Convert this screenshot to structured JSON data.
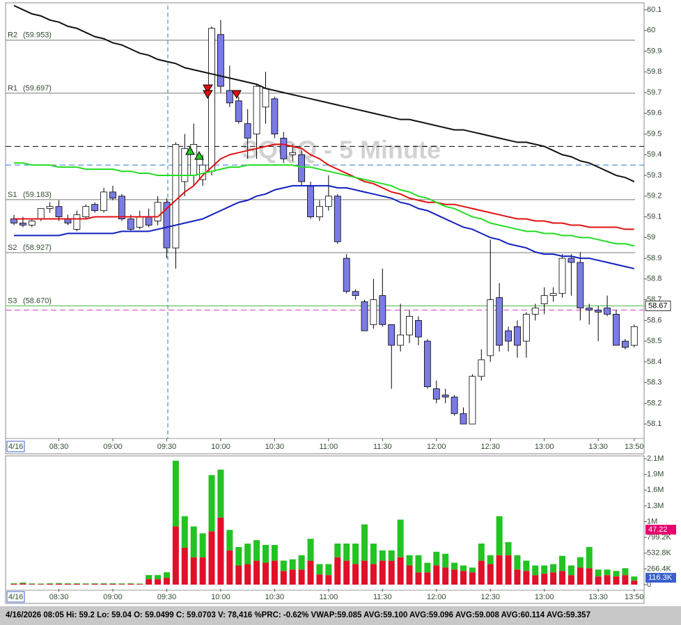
{
  "chart_data": [
    {
      "type": "candlestick",
      "title": "SQQQ - 5 Minute",
      "date_label": "4/16",
      "categories": [
        null,
        null,
        null,
        null,
        null,
        "08:30",
        null,
        null,
        null,
        null,
        null,
        "09:00",
        null,
        null,
        null,
        null,
        null,
        "09:30",
        null,
        null,
        null,
        null,
        null,
        "10:00",
        null,
        null,
        null,
        null,
        null,
        "10:30",
        null,
        null,
        null,
        null,
        null,
        "11:00",
        null,
        null,
        null,
        null,
        null,
        "11:30",
        null,
        null,
        null,
        null,
        null,
        "12:00",
        null,
        null,
        null,
        null,
        null,
        "12:30",
        null,
        null,
        null,
        null,
        null,
        "13:00",
        null,
        null,
        null,
        null,
        null,
        "13:30",
        null,
        null,
        null,
        "13:50"
      ],
      "open": [
        59.09,
        59.07,
        59.06,
        59.09,
        59.14,
        59.15,
        59.09,
        59.04,
        59.1,
        59.16,
        59.13,
        59.22,
        59.2,
        59.09,
        59.05,
        59.1,
        59.08,
        59.17,
        58.95,
        59.27,
        59.3,
        59.28,
        59.32,
        59.98,
        59.71,
        59.66,
        59.55,
        59.5,
        59.63,
        59.67,
        59.48,
        59.4,
        59.4,
        59.25,
        59.1,
        59.15,
        59.2,
        58.9,
        58.74,
        58.69,
        58.58,
        58.72,
        58.58,
        58.48,
        58.53,
        58.6,
        58.5,
        58.27,
        58.24,
        58.23,
        58.15,
        58.1,
        58.33,
        58.43,
        58.71,
        58.55,
        58.57,
        58.5,
        58.63,
        58.68,
        58.72,
        58.73,
        58.9,
        58.88,
        58.66,
        58.65,
        58.66,
        58.63,
        58.5,
        58.48
      ],
      "high": [
        59.11,
        59.1,
        59.09,
        59.14,
        59.17,
        59.18,
        59.11,
        59.13,
        59.16,
        59.17,
        59.24,
        59.25,
        59.21,
        59.11,
        59.13,
        59.14,
        59.2,
        59.19,
        59.46,
        59.5,
        59.55,
        59.4,
        60.02,
        60.05,
        59.83,
        59.68,
        59.62,
        59.74,
        59.8,
        59.68,
        59.51,
        59.45,
        59.42,
        59.27,
        59.18,
        59.3,
        59.21,
        58.92,
        58.75,
        58.7,
        58.8,
        58.85,
        58.58,
        58.68,
        58.65,
        58.62,
        58.51,
        58.31,
        58.27,
        58.24,
        58.18,
        58.34,
        58.46,
        58.99,
        58.78,
        58.57,
        58.6,
        58.64,
        58.68,
        58.76,
        58.76,
        58.92,
        58.92,
        58.93,
        58.68,
        58.67,
        58.72,
        58.65,
        58.51,
        58.58
      ],
      "low": [
        59.06,
        59.05,
        59.05,
        59.08,
        59.12,
        59.08,
        59.06,
        59.03,
        59.09,
        59.12,
        59.12,
        59.18,
        59.08,
        59.03,
        59.04,
        59.05,
        59.06,
        58.9,
        58.85,
        59.2,
        59.25,
        59.25,
        59.3,
        59.7,
        59.63,
        59.55,
        59.38,
        59.38,
        59.55,
        59.48,
        59.36,
        59.37,
        59.25,
        59.09,
        59.08,
        59.13,
        58.97,
        58.73,
        58.7,
        58.55,
        58.56,
        58.57,
        58.27,
        58.45,
        58.49,
        58.48,
        58.27,
        58.2,
        58.2,
        58.14,
        58.1,
        58.1,
        58.31,
        58.4,
        58.45,
        58.45,
        58.42,
        58.42,
        58.6,
        58.63,
        58.69,
        58.71,
        58.72,
        58.6,
        58.58,
        58.5,
        58.62,
        58.48,
        58.46,
        58.47
      ],
      "close": [
        59.07,
        59.06,
        59.08,
        59.14,
        59.15,
        59.1,
        59.07,
        59.11,
        59.15,
        59.13,
        59.22,
        59.19,
        59.09,
        59.04,
        59.1,
        59.06,
        59.17,
        58.95,
        59.45,
        59.43,
        59.45,
        59.35,
        60.01,
        59.73,
        59.65,
        59.56,
        59.48,
        59.73,
        59.72,
        59.5,
        59.38,
        59.41,
        59.27,
        59.1,
        59.15,
        59.2,
        58.98,
        58.74,
        58.72,
        58.55,
        58.7,
        58.58,
        58.48,
        58.53,
        58.62,
        58.52,
        58.28,
        58.22,
        58.23,
        58.15,
        58.1,
        58.33,
        58.41,
        58.7,
        58.48,
        58.5,
        58.48,
        58.63,
        58.66,
        58.72,
        58.73,
        58.9,
        58.88,
        58.66,
        58.65,
        58.64,
        58.63,
        58.48,
        58.47,
        58.57
      ],
      "up_color": "#ffffff",
      "down_color": "#7b7be6",
      "lines": [
        {
          "color": "#111111",
          "values": [
            60.12,
            60.1,
            60.08,
            60.07,
            60.05,
            60.04,
            60.02,
            60.01,
            59.99,
            59.97,
            59.96,
            59.94,
            59.93,
            59.91,
            59.89,
            59.88,
            59.86,
            59.85,
            59.84,
            59.82,
            59.81,
            59.8,
            59.79,
            59.78,
            59.77,
            59.76,
            59.75,
            59.74,
            59.72,
            59.71,
            59.7,
            59.69,
            59.68,
            59.67,
            59.66,
            59.65,
            59.64,
            59.63,
            59.62,
            59.61,
            59.6,
            59.59,
            59.58,
            59.57,
            59.57,
            59.56,
            59.55,
            59.54,
            59.53,
            59.52,
            59.52,
            59.51,
            59.5,
            59.49,
            59.48,
            59.47,
            59.46,
            59.46,
            59.45,
            59.44,
            59.42,
            59.4,
            59.39,
            59.37,
            59.36,
            59.34,
            59.32,
            59.3,
            59.29,
            59.27
          ]
        },
        {
          "color": "#e01010",
          "values": [
            59.09,
            59.09,
            59.09,
            59.09,
            59.09,
            59.09,
            59.09,
            59.09,
            59.09,
            59.1,
            59.1,
            59.1,
            59.1,
            59.1,
            59.1,
            59.1,
            59.1,
            59.14,
            59.18,
            59.22,
            59.25,
            59.3,
            59.34,
            59.38,
            59.4,
            59.41,
            59.42,
            59.43,
            59.44,
            59.45,
            59.45,
            59.44,
            59.43,
            59.4,
            59.38,
            59.35,
            59.33,
            59.31,
            59.29,
            59.27,
            59.26,
            59.24,
            59.22,
            59.21,
            59.19,
            59.18,
            59.17,
            59.17,
            59.16,
            59.16,
            59.15,
            59.14,
            59.13,
            59.12,
            59.11,
            59.1,
            59.09,
            59.09,
            59.08,
            59.08,
            59.07,
            59.07,
            59.06,
            59.06,
            59.05,
            59.05,
            59.05,
            59.05,
            59.04,
            59.04
          ]
        },
        {
          "color": "#22dd22",
          "values": [
            59.36,
            59.36,
            59.35,
            59.35,
            59.35,
            59.34,
            59.34,
            59.34,
            59.33,
            59.33,
            59.33,
            59.33,
            59.32,
            59.32,
            59.31,
            59.31,
            59.3,
            59.3,
            59.3,
            59.3,
            59.3,
            59.31,
            59.32,
            59.33,
            59.34,
            59.34,
            59.35,
            59.35,
            59.35,
            59.35,
            59.35,
            59.35,
            59.34,
            59.34,
            59.33,
            59.32,
            59.31,
            59.3,
            59.29,
            59.28,
            59.27,
            59.26,
            59.25,
            59.23,
            59.22,
            59.2,
            59.19,
            59.17,
            59.15,
            59.14,
            59.12,
            59.1,
            59.09,
            59.07,
            59.06,
            59.05,
            59.04,
            59.03,
            59.03,
            59.02,
            59.02,
            59.01,
            59.01,
            59.0,
            59.0,
            58.99,
            58.98,
            58.97,
            58.97,
            58.96
          ]
        },
        {
          "color": "#1020c0",
          "values": [
            59.01,
            59.01,
            59.01,
            59.01,
            59.01,
            59.01,
            59.02,
            59.02,
            59.02,
            59.02,
            59.02,
            59.02,
            59.03,
            59.03,
            59.03,
            59.03,
            59.04,
            59.05,
            59.06,
            59.07,
            59.08,
            59.09,
            59.11,
            59.13,
            59.15,
            59.17,
            59.18,
            59.2,
            59.21,
            59.23,
            59.24,
            59.25,
            59.25,
            59.25,
            59.25,
            59.25,
            59.24,
            59.24,
            59.23,
            59.22,
            59.21,
            59.2,
            59.19,
            59.17,
            59.16,
            59.14,
            59.13,
            59.11,
            59.09,
            59.07,
            59.05,
            59.04,
            59.02,
            59.0,
            58.99,
            58.97,
            58.96,
            58.95,
            58.93,
            58.92,
            58.92,
            58.91,
            58.91,
            58.9,
            58.9,
            58.89,
            58.88,
            58.87,
            58.86,
            58.85
          ]
        }
      ],
      "pivots": {
        "names": [
          "R2",
          "R1",
          "S1",
          "S2",
          "S3"
        ],
        "values": [
          59.953,
          59.697,
          59.183,
          58.927,
          58.67
        ],
        "value_labels": [
          "(59.953)",
          "(59.697)",
          "(59.183)",
          "(58.927)",
          "(58.670)"
        ]
      },
      "ref_lines": [
        {
          "value": 59.44,
          "color": "#000000"
        },
        {
          "value": 59.35,
          "color": "#2a7ad0"
        },
        {
          "value": 58.65,
          "color": "#d040c0"
        }
      ],
      "last_price": 58.67,
      "ylim": [
        58.03,
        60.12
      ],
      "yticks": [
        60.1,
        60,
        59.9,
        59.8,
        59.7,
        59.6,
        59.5,
        59.4,
        59.3,
        59.2,
        59.1,
        59,
        58.9,
        58.8,
        58.7,
        58.6,
        58.5,
        58.4,
        58.3,
        58.2,
        58.1
      ]
    },
    {
      "type": "bar",
      "date_label": "4/16",
      "categories": [
        null,
        null,
        null,
        null,
        null,
        "08:30",
        null,
        null,
        null,
        null,
        null,
        "09:00",
        null,
        null,
        null,
        null,
        null,
        "09:30",
        null,
        null,
        null,
        null,
        null,
        "10:00",
        null,
        null,
        null,
        null,
        null,
        "10:30",
        null,
        null,
        null,
        null,
        null,
        "11:00",
        null,
        null,
        null,
        null,
        null,
        "11:30",
        null,
        null,
        null,
        null,
        null,
        "12:00",
        null,
        null,
        null,
        null,
        null,
        "12:30",
        null,
        null,
        null,
        null,
        null,
        "13:00",
        null,
        null,
        null,
        null,
        null,
        "13:30",
        null,
        null,
        null,
        "13:50"
      ],
      "series": [
        {
          "color": "#e0102a",
          "values": [
            12000,
            20000,
            10000,
            10000,
            12000,
            15000,
            12000,
            12000,
            10000,
            12000,
            12000,
            12000,
            10000,
            12000,
            10000,
            93000,
            93000,
            116000,
            985000,
            625000,
            463000,
            463000,
            903000,
            1135000,
            579000,
            324000,
            347000,
            405000,
            371000,
            405000,
            232000,
            255000,
            255000,
            405000,
            174000,
            162000,
            463000,
            405000,
            347000,
            405000,
            347000,
            405000,
            405000,
            463000,
            324000,
            208000,
            208000,
            324000,
            290000,
            255000,
            232000,
            208000,
            405000,
            347000,
            498000,
            498000,
            255000,
            232000,
            162000,
            185000,
            208000,
            232000,
            162000,
            290000,
            278000,
            139000,
            162000,
            139000,
            162000,
            69000
          ]
        },
        {
          "color": "#22c322",
          "values": [
            10000,
            15000,
            10000,
            8000,
            10000,
            12000,
            10000,
            10000,
            10000,
            10000,
            10000,
            10000,
            10000,
            10000,
            8000,
            69000,
            69000,
            93000,
            1112000,
            533000,
            521000,
            405000,
            950000,
            811000,
            347000,
            313000,
            347000,
            347000,
            301000,
            266000,
            174000,
            174000,
            243000,
            371000,
            174000,
            185000,
            232000,
            290000,
            347000,
            614000,
            347000,
            174000,
            174000,
            637000,
            174000,
            290000,
            162000,
            232000,
            232000,
            116000,
            93000,
            81000,
            290000,
            151000,
            660000,
            220000,
            243000,
            174000,
            162000,
            139000,
            139000,
            255000,
            162000,
            174000,
            359000,
            116000,
            93000,
            93000,
            116000,
            69000
          ]
        }
      ],
      "tags": [
        {
          "value": 47.22,
          "color": "#e8006e"
        },
        {
          "value": 116300,
          "label": "116.3K",
          "color": "#3a5fcd"
        }
      ],
      "ylim": [
        0,
        2131200
      ],
      "yticks": [
        {
          "value": 2131200,
          "label": "2.1M"
        },
        {
          "value": 1864800,
          "label": "1.9M"
        },
        {
          "value": 1598400,
          "label": "1.6M"
        },
        {
          "value": 1332000,
          "label": "1.3M"
        },
        {
          "value": 1065600,
          "label": "1M"
        },
        {
          "value": 799200,
          "label": "799.2K"
        },
        {
          "value": 532800,
          "label": "532.8K"
        },
        {
          "value": 266400,
          "label": "266.4K"
        },
        0
      ]
    }
  ],
  "status_bar": "4/16/2026 08:05  Hi: 59.2  Lo: 59.04  O: 59.0499  C: 59.0703  V: 78,416 %PRC: -0.62% VWAP:59.085 AVG:59.100 AVG:59.096 AVG:59.008 AVG:60.114 AVG:59.357"
}
